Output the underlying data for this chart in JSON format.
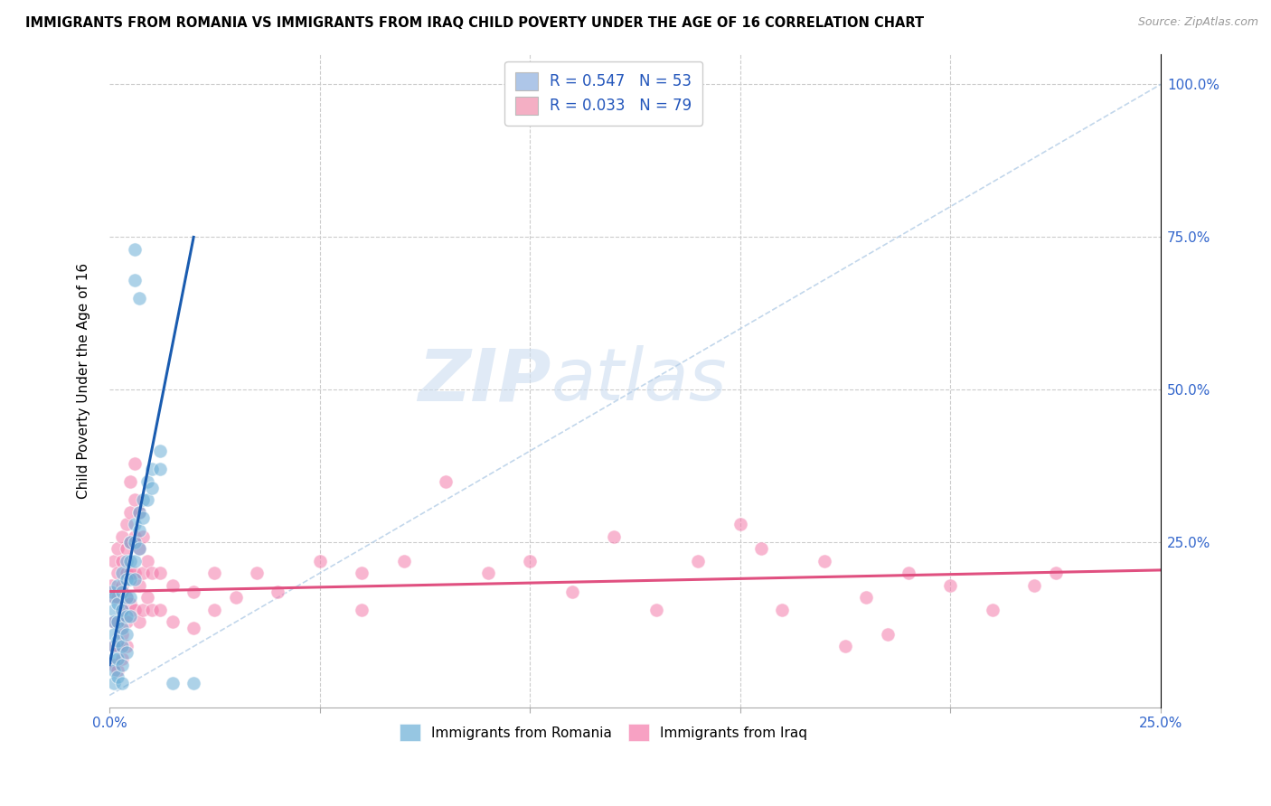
{
  "title": "IMMIGRANTS FROM ROMANIA VS IMMIGRANTS FROM IRAQ CHILD POVERTY UNDER THE AGE OF 16 CORRELATION CHART",
  "source": "Source: ZipAtlas.com",
  "ylabel": "Child Poverty Under the Age of 16",
  "legend_entries": [
    {
      "label": "R = 0.547   N = 53",
      "color": "#aec6e8"
    },
    {
      "label": "R = 0.033   N = 79",
      "color": "#f4afc4"
    }
  ],
  "legend_text_color": "#2255bb",
  "romania_color": "#6aaed6",
  "iraq_color": "#f47aaa",
  "trendline_romania_color": "#1a5cb0",
  "trendline_iraq_color": "#e05080",
  "diagonal_color": "#b8d0e8",
  "watermark_zip": "ZIP",
  "watermark_atlas": "atlas",
  "xlim": [
    0.0,
    0.25
  ],
  "ylim": [
    -0.02,
    1.05
  ],
  "romania_scatter": [
    [
      0.0005,
      0.17
    ],
    [
      0.001,
      0.16
    ],
    [
      0.001,
      0.14
    ],
    [
      0.001,
      0.12
    ],
    [
      0.001,
      0.1
    ],
    [
      0.001,
      0.08
    ],
    [
      0.001,
      0.06
    ],
    [
      0.001,
      0.04
    ],
    [
      0.001,
      0.02
    ],
    [
      0.002,
      0.18
    ],
    [
      0.002,
      0.15
    ],
    [
      0.002,
      0.12
    ],
    [
      0.002,
      0.09
    ],
    [
      0.002,
      0.06
    ],
    [
      0.002,
      0.03
    ],
    [
      0.003,
      0.2
    ],
    [
      0.003,
      0.17
    ],
    [
      0.003,
      0.14
    ],
    [
      0.003,
      0.11
    ],
    [
      0.003,
      0.08
    ],
    [
      0.003,
      0.05
    ],
    [
      0.003,
      0.02
    ],
    [
      0.004,
      0.22
    ],
    [
      0.004,
      0.19
    ],
    [
      0.004,
      0.16
    ],
    [
      0.004,
      0.13
    ],
    [
      0.004,
      0.1
    ],
    [
      0.004,
      0.07
    ],
    [
      0.005,
      0.25
    ],
    [
      0.005,
      0.22
    ],
    [
      0.005,
      0.19
    ],
    [
      0.005,
      0.16
    ],
    [
      0.005,
      0.13
    ],
    [
      0.006,
      0.28
    ],
    [
      0.006,
      0.25
    ],
    [
      0.006,
      0.22
    ],
    [
      0.006,
      0.19
    ],
    [
      0.007,
      0.3
    ],
    [
      0.007,
      0.27
    ],
    [
      0.007,
      0.24
    ],
    [
      0.008,
      0.32
    ],
    [
      0.008,
      0.29
    ],
    [
      0.009,
      0.35
    ],
    [
      0.009,
      0.32
    ],
    [
      0.01,
      0.37
    ],
    [
      0.01,
      0.34
    ],
    [
      0.012,
      0.4
    ],
    [
      0.012,
      0.37
    ],
    [
      0.006,
      0.68
    ],
    [
      0.006,
      0.73
    ],
    [
      0.007,
      0.65
    ],
    [
      0.015,
      0.02
    ],
    [
      0.02,
      0.02
    ]
  ],
  "iraq_scatter": [
    [
      0.0005,
      0.18
    ],
    [
      0.001,
      0.22
    ],
    [
      0.001,
      0.16
    ],
    [
      0.001,
      0.12
    ],
    [
      0.001,
      0.08
    ],
    [
      0.001,
      0.05
    ],
    [
      0.002,
      0.24
    ],
    [
      0.002,
      0.2
    ],
    [
      0.002,
      0.16
    ],
    [
      0.002,
      0.12
    ],
    [
      0.002,
      0.08
    ],
    [
      0.002,
      0.04
    ],
    [
      0.003,
      0.26
    ],
    [
      0.003,
      0.22
    ],
    [
      0.003,
      0.18
    ],
    [
      0.003,
      0.14
    ],
    [
      0.003,
      0.1
    ],
    [
      0.003,
      0.06
    ],
    [
      0.004,
      0.28
    ],
    [
      0.004,
      0.24
    ],
    [
      0.004,
      0.2
    ],
    [
      0.004,
      0.16
    ],
    [
      0.004,
      0.12
    ],
    [
      0.004,
      0.08
    ],
    [
      0.005,
      0.35
    ],
    [
      0.005,
      0.3
    ],
    [
      0.005,
      0.25
    ],
    [
      0.005,
      0.2
    ],
    [
      0.005,
      0.15
    ],
    [
      0.006,
      0.38
    ],
    [
      0.006,
      0.32
    ],
    [
      0.006,
      0.26
    ],
    [
      0.006,
      0.2
    ],
    [
      0.006,
      0.14
    ],
    [
      0.007,
      0.3
    ],
    [
      0.007,
      0.24
    ],
    [
      0.007,
      0.18
    ],
    [
      0.007,
      0.12
    ],
    [
      0.008,
      0.26
    ],
    [
      0.008,
      0.2
    ],
    [
      0.008,
      0.14
    ],
    [
      0.009,
      0.22
    ],
    [
      0.009,
      0.16
    ],
    [
      0.01,
      0.2
    ],
    [
      0.01,
      0.14
    ],
    [
      0.012,
      0.2
    ],
    [
      0.012,
      0.14
    ],
    [
      0.015,
      0.18
    ],
    [
      0.015,
      0.12
    ],
    [
      0.02,
      0.17
    ],
    [
      0.02,
      0.11
    ],
    [
      0.025,
      0.2
    ],
    [
      0.025,
      0.14
    ],
    [
      0.03,
      0.16
    ],
    [
      0.035,
      0.2
    ],
    [
      0.04,
      0.17
    ],
    [
      0.05,
      0.22
    ],
    [
      0.06,
      0.2
    ],
    [
      0.06,
      0.14
    ],
    [
      0.07,
      0.22
    ],
    [
      0.08,
      0.35
    ],
    [
      0.09,
      0.2
    ],
    [
      0.1,
      0.22
    ],
    [
      0.11,
      0.17
    ],
    [
      0.12,
      0.26
    ],
    [
      0.13,
      0.14
    ],
    [
      0.14,
      0.22
    ],
    [
      0.15,
      0.28
    ],
    [
      0.155,
      0.24
    ],
    [
      0.16,
      0.14
    ],
    [
      0.17,
      0.22
    ],
    [
      0.175,
      0.08
    ],
    [
      0.18,
      0.16
    ],
    [
      0.185,
      0.1
    ],
    [
      0.19,
      0.2
    ],
    [
      0.2,
      0.18
    ],
    [
      0.21,
      0.14
    ],
    [
      0.22,
      0.18
    ],
    [
      0.225,
      0.2
    ]
  ],
  "romania_trendline": [
    [
      0.0,
      0.05
    ],
    [
      0.02,
      0.75
    ]
  ],
  "iraq_trendline": [
    [
      0.0,
      0.17
    ],
    [
      0.25,
      0.205
    ]
  ]
}
